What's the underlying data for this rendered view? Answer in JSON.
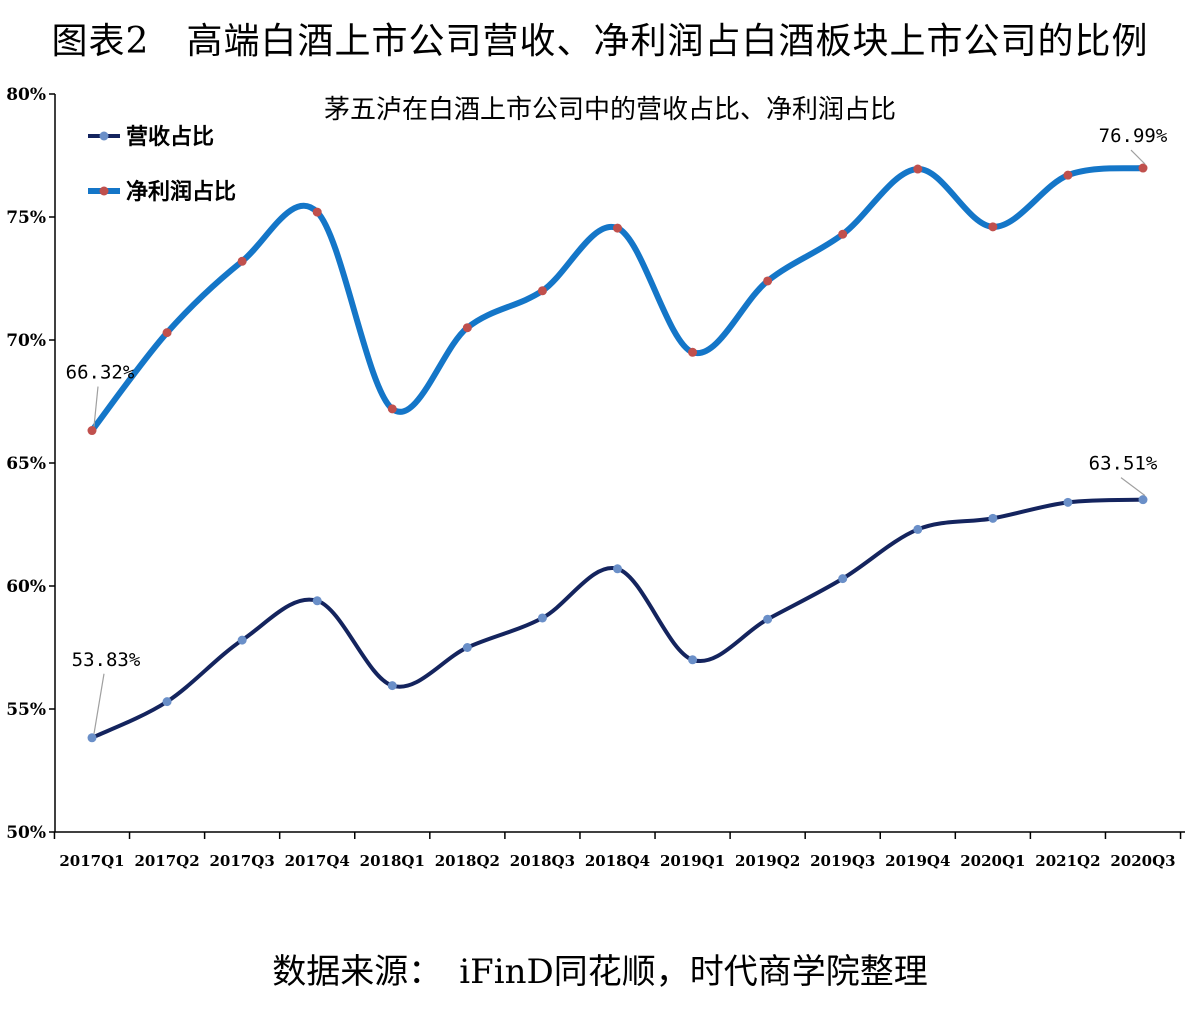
{
  "figure": {
    "title": "图表2　高端白酒上市公司营收、净利润占白酒板块上市公司的比例",
    "source": "数据来源：　iFinD同花顺，时代商学院整理"
  },
  "chart_data": {
    "type": "line",
    "title": "茅五泸在白酒上市公司中的营收占比、净利润占比",
    "x": [
      "2017Q1",
      "2017Q2",
      "2017Q3",
      "2017Q4",
      "2018Q1",
      "2018Q2",
      "2018Q3",
      "2018Q4",
      "2019Q1",
      "2019Q2",
      "2019Q3",
      "2019Q4",
      "2020Q1",
      "2021Q2",
      "2020Q3"
    ],
    "ylim": [
      50,
      80
    ],
    "yticks": [
      50,
      55,
      60,
      65,
      70,
      75,
      80
    ],
    "ytick_labels": [
      "50%",
      "55%",
      "60%",
      "65%",
      "70%",
      "75%",
      "80%"
    ],
    "grid": false,
    "legend_position": "top-left",
    "series": [
      {
        "name": "营收占比",
        "line_color": "#14245e",
        "marker_color": "#6a8fc8",
        "values": [
          53.83,
          55.3,
          57.8,
          59.4,
          55.95,
          57.5,
          58.7,
          60.7,
          57.0,
          58.65,
          60.3,
          62.3,
          62.75,
          63.4,
          63.51
        ]
      },
      {
        "name": "净利润占比",
        "line_color": "#1476c8",
        "marker_color": "#c0504d",
        "values": [
          66.32,
          70.3,
          73.2,
          75.2,
          67.2,
          70.5,
          72.0,
          74.55,
          69.5,
          72.4,
          74.3,
          76.95,
          74.6,
          76.7,
          76.99
        ]
      }
    ],
    "annotations": [
      {
        "series": 1,
        "index": 0,
        "text": "66.32%"
      },
      {
        "series": 1,
        "index": 14,
        "text": "76.99%"
      },
      {
        "series": 0,
        "index": 0,
        "text": "53.83%"
      },
      {
        "series": 0,
        "index": 14,
        "text": "63.51%"
      }
    ]
  }
}
